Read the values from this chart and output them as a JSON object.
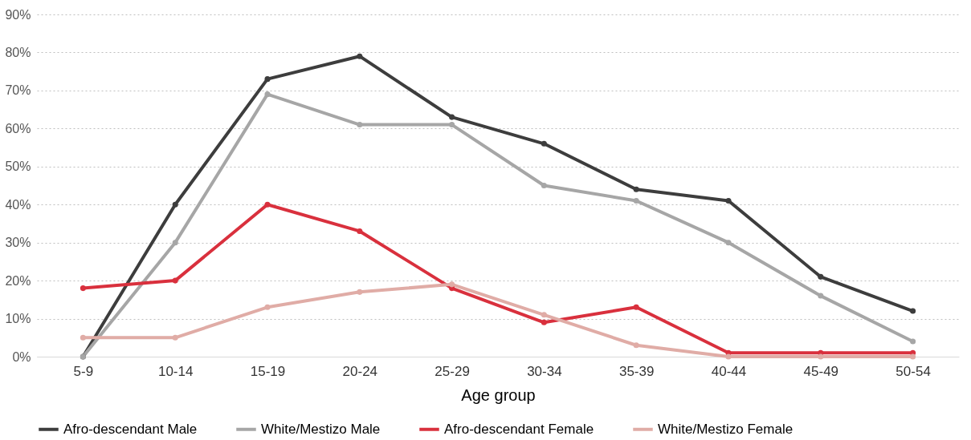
{
  "chart_data": {
    "type": "line",
    "xlabel": "Age group",
    "categories": [
      "5-9",
      "10-14",
      "15-19",
      "20-24",
      "25-29",
      "30-34",
      "35-39",
      "40-44",
      "45-49",
      "50-54"
    ],
    "series": [
      {
        "name": "Afro-descendant Male",
        "color": "#3d3d3d",
        "values": [
          0,
          40,
          73,
          79,
          63,
          56,
          44,
          41,
          21,
          12
        ]
      },
      {
        "name": "White/Mestizo Male",
        "color": "#a6a6a6",
        "values": [
          0,
          30,
          69,
          61,
          61,
          45,
          41,
          30,
          16,
          4
        ]
      },
      {
        "name": "Afro-descendant Female",
        "color": "#d9303d",
        "values": [
          18,
          20,
          40,
          33,
          18,
          9,
          13,
          1,
          1,
          1
        ]
      },
      {
        "name": "White/Mestizo Female",
        "color": "#e0aca6",
        "values": [
          5,
          5,
          13,
          17,
          19,
          11,
          3,
          0,
          0,
          0
        ]
      }
    ],
    "ylim": [
      0,
      90
    ],
    "yticks": [
      {
        "value": 0,
        "label": "0%"
      },
      {
        "value": 10,
        "label": "10%"
      },
      {
        "value": 20,
        "label": "20%"
      },
      {
        "value": 30,
        "label": "30%"
      },
      {
        "value": 40,
        "label": "40%"
      },
      {
        "value": 50,
        "label": "50%"
      },
      {
        "value": 60,
        "label": "60%"
      },
      {
        "value": 70,
        "label": "70%"
      },
      {
        "value": 80,
        "label": "80%"
      },
      {
        "value": 90,
        "label": "90%"
      }
    ],
    "grid": "y",
    "legend": "bottom",
    "marker": "circle",
    "line_style": "solid"
  }
}
